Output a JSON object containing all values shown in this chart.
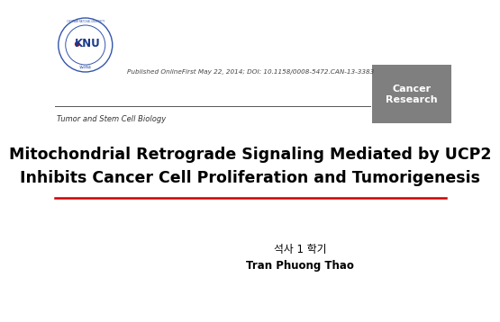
{
  "bg_color": "#ffffff",
  "published_text": "Published OnlineFirst May 22, 2014; DOI: 10.1158/0008-5472.CAN-13-3383",
  "section_label": "Tumor and Stem Cell Biology",
  "journal_line1": "Cancer",
  "journal_line2": "Research",
  "journal_box_color": "#7f7f7f",
  "journal_text_color": "#ffffff",
  "title_line1": "Mitochondrial Retrograde Signaling Mediated by UCP2",
  "title_line2": "Inhibits Cancer Cell Proliferation and Tumorigenesis",
  "author_line1": "석사 1 학기",
  "author_line2": "Tran Phuong Thao",
  "red_line_color": "#cc0000",
  "dark_line_color": "#555555",
  "knu_circle_color": "#3355aa",
  "knu_red_dot_color": "#cc0000",
  "knu_text_color": "#1a3a8a"
}
